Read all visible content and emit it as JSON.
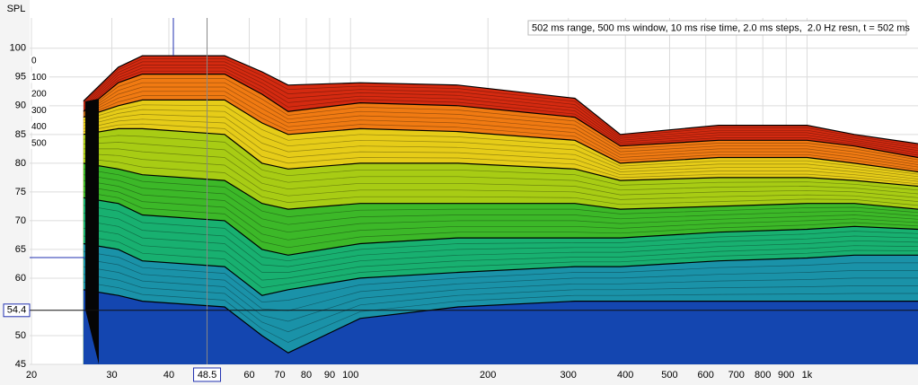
{
  "chart_data": {
    "type": "waterfall",
    "y_label": "SPL",
    "annotation": "502 ms range, 500 ms window, 10 ms rise time, 2.0 ms steps,  2.0 Hz resn, t = 502 ms",
    "x_scale": "log",
    "xlim": [
      20,
      1750
    ],
    "xticks": [
      20,
      30,
      40,
      60,
      70,
      80,
      90,
      100,
      200,
      300,
      400,
      500,
      600,
      700,
      800,
      900,
      {
        "value": 1000,
        "label": "1k"
      }
    ],
    "ylim": [
      45,
      108.4
    ],
    "yticks": [
      45,
      50,
      60,
      65,
      70,
      75,
      80,
      85,
      90,
      95,
      100
    ],
    "time_ticks": [
      0,
      100,
      200,
      300,
      400,
      500
    ],
    "cursor_x": 48.5,
    "cursor_y": 54.4,
    "grid": true,
    "x": [
      26,
      31,
      35,
      53,
      64,
      73,
      105,
      172,
      310,
      390,
      640,
      1000,
      1270,
      1750
    ],
    "series": [
      {
        "color": "#d42a10",
        "values": [
          90.8,
          96.7,
          98.7,
          98.7,
          95.9,
          93.6,
          94,
          93.6,
          91.3,
          85,
          86.6,
          86.6,
          85,
          83.4
        ]
      },
      {
        "color": "#f07a12",
        "values": [
          89,
          94,
          95.5,
          95.5,
          92,
          89,
          90.5,
          90,
          88,
          83,
          84,
          84,
          83,
          81
        ]
      },
      {
        "color": "#e6cc18",
        "values": [
          88,
          90,
          91,
          91,
          87,
          85,
          86,
          85.5,
          84,
          80,
          81,
          81,
          80,
          78.5
        ]
      },
      {
        "color": "#a8cc14",
        "values": [
          85,
          86,
          86,
          85,
          80,
          79,
          80,
          80,
          79,
          77,
          77.5,
          77.5,
          77,
          76
        ]
      },
      {
        "color": "#3cb828",
        "values": [
          80,
          79,
          78,
          77,
          73,
          72,
          73,
          73,
          73,
          72,
          72.5,
          73,
          73,
          72
        ]
      },
      {
        "color": "#18b070",
        "values": [
          74,
          73,
          71,
          70,
          65,
          64,
          66,
          67,
          67,
          67,
          68,
          68.5,
          69,
          68.5
        ]
      },
      {
        "color": "#1a92a8",
        "values": [
          66,
          65,
          63,
          62,
          57,
          58,
          60,
          61,
          62,
          62,
          63,
          63.5,
          64,
          64
        ]
      },
      {
        "color": "#1446b0",
        "values": [
          58,
          57,
          56,
          55,
          50,
          47,
          53,
          55,
          56,
          56,
          56,
          56,
          56,
          56
        ]
      }
    ]
  }
}
